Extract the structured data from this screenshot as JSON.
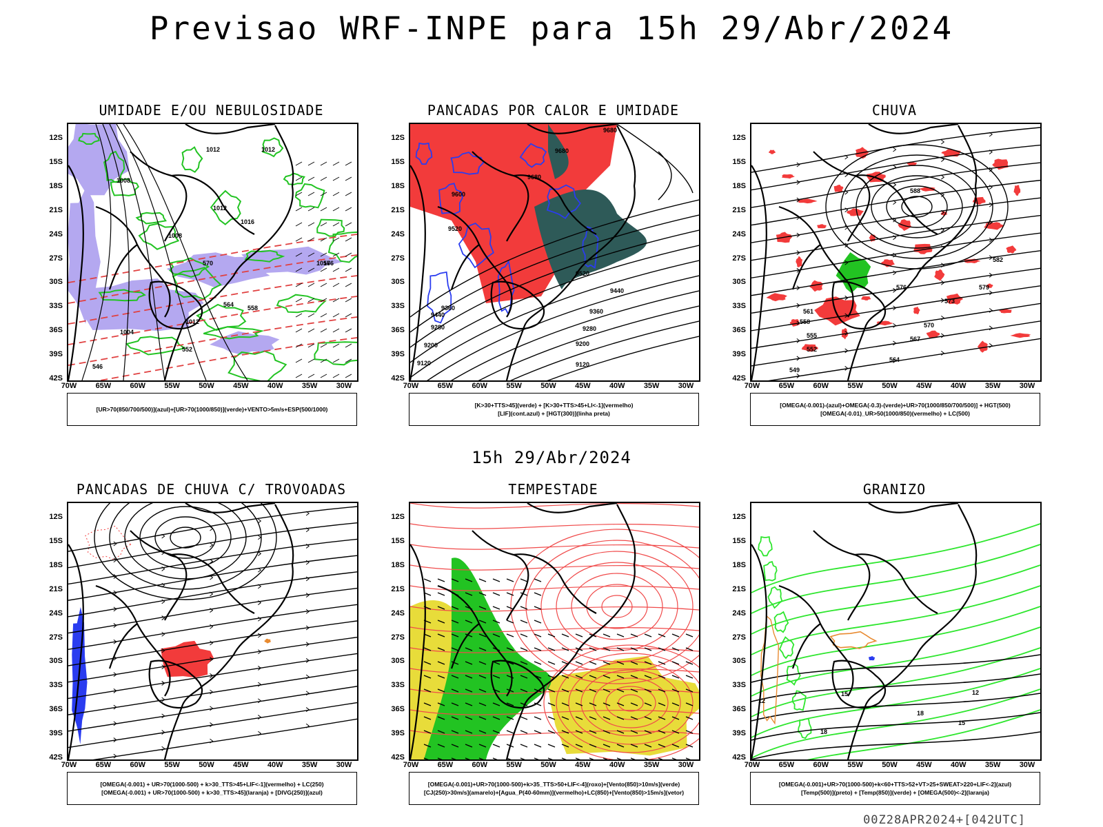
{
  "header": {
    "title": "Previsao WRF-INPE  para 15h 29/Abr/2024",
    "mid_title": "15h 29/Abr/2024",
    "footer": "00Z28APR2024+[042UTC]"
  },
  "axes": {
    "lat_labels": [
      "12S",
      "15S",
      "18S",
      "21S",
      "24S",
      "27S",
      "30S",
      "33S",
      "36S",
      "39S",
      "42S"
    ],
    "lon_labels": [
      "70W",
      "65W",
      "60W",
      "55W",
      "50W",
      "45W",
      "40W",
      "35W",
      "30W"
    ]
  },
  "panels": [
    {
      "title": "UMIDADE E/OU NEBULOSIDADE",
      "legend": [
        "[UR>70(850/700/500)](azul)+[UR>70(1000/850)](verde)+VENTO>5m/s+ESP(500/1000)"
      ],
      "contour_labels": [
        "1012",
        "1012",
        "1008",
        "1012",
        "1016",
        "1016",
        "1008",
        "1012",
        "1004",
        "576",
        "570",
        "564",
        "558",
        "552",
        "546"
      ]
    },
    {
      "title": "PANCADAS POR CALOR E UMIDADE",
      "legend": [
        "[K>30+TTS>45](verde) + [K>30+TTS>45+LI<-1](vermelho)",
        "[LIF](cont.azul) + [HGT(300)](linha preta)"
      ],
      "contour_labels": [
        "9680",
        "9680",
        "9680",
        "9600",
        "9520",
        "9440",
        "9360",
        "9280",
        "9200",
        "9120",
        "9520",
        "9440",
        "9360",
        "9280",
        "9200",
        "9120"
      ]
    },
    {
      "title": "CHUVA",
      "legend": [
        "[OMEGA(-0.001)-(azul)+OMEGA(-0.3)-(verde)+UR>70(1000/850/700/500)] + HGT(500)",
        "[OMEGA(-0.01)_UR>50(1000/850)(vermelho) + LC(500)"
      ],
      "contour_labels": [
        "588",
        "582",
        "579",
        "576",
        "573",
        "570",
        "567",
        "564",
        "561",
        "558",
        "555",
        "552",
        "549"
      ]
    },
    {
      "title": "PANCADAS DE CHUVA C/ TROVOADAS",
      "legend": [
        "[OMEGA(-0.001) + UR>70(1000-500) + k>30_TTS>45+LIF<-1](vermelho) + LC(250)",
        "[OMEGA(-0.001) + UR>70(1000-500) + k>30_TTS>45](laranja) + [DIVG(250)](azul)"
      ],
      "contour_labels": []
    },
    {
      "title": "TEMPESTADE",
      "legend": [
        "[OMEGA(-0.001)+UR>70(1000-500)+k>35_TTS>50+LIF<-4](roxo)+[Vento(850)>10m/s](verde)",
        "[CJ(250)>30m/s](amarelo)+[Agua_P(40-60mm)](vermelho)+LC(850)+[Vento(850)>15m/s](vetor)"
      ],
      "contour_labels": []
    },
    {
      "title": "GRANIZO",
      "legend": [
        "[OMEGA(-0.001)+UR>70(1000-500)+k<60+TTS>52+VT>25+SWEAT>220+LIF<-2](azul)",
        "[Temp(500)](preto) + [Temp(850)](verde) + [OMEGA(500)<-2](laranja)"
      ],
      "contour_labels": [
        "12",
        "12",
        "15",
        "18",
        "15",
        "18"
      ]
    }
  ],
  "colors": {
    "red": "#f23b3b",
    "green": "#22c322",
    "bright_green": "#2ee62e",
    "blue": "#2a3cf0",
    "lavender": "#b4a8f0",
    "yellow": "#e8dc3a",
    "teal": "#2e5a58",
    "orange": "#e88a30"
  }
}
